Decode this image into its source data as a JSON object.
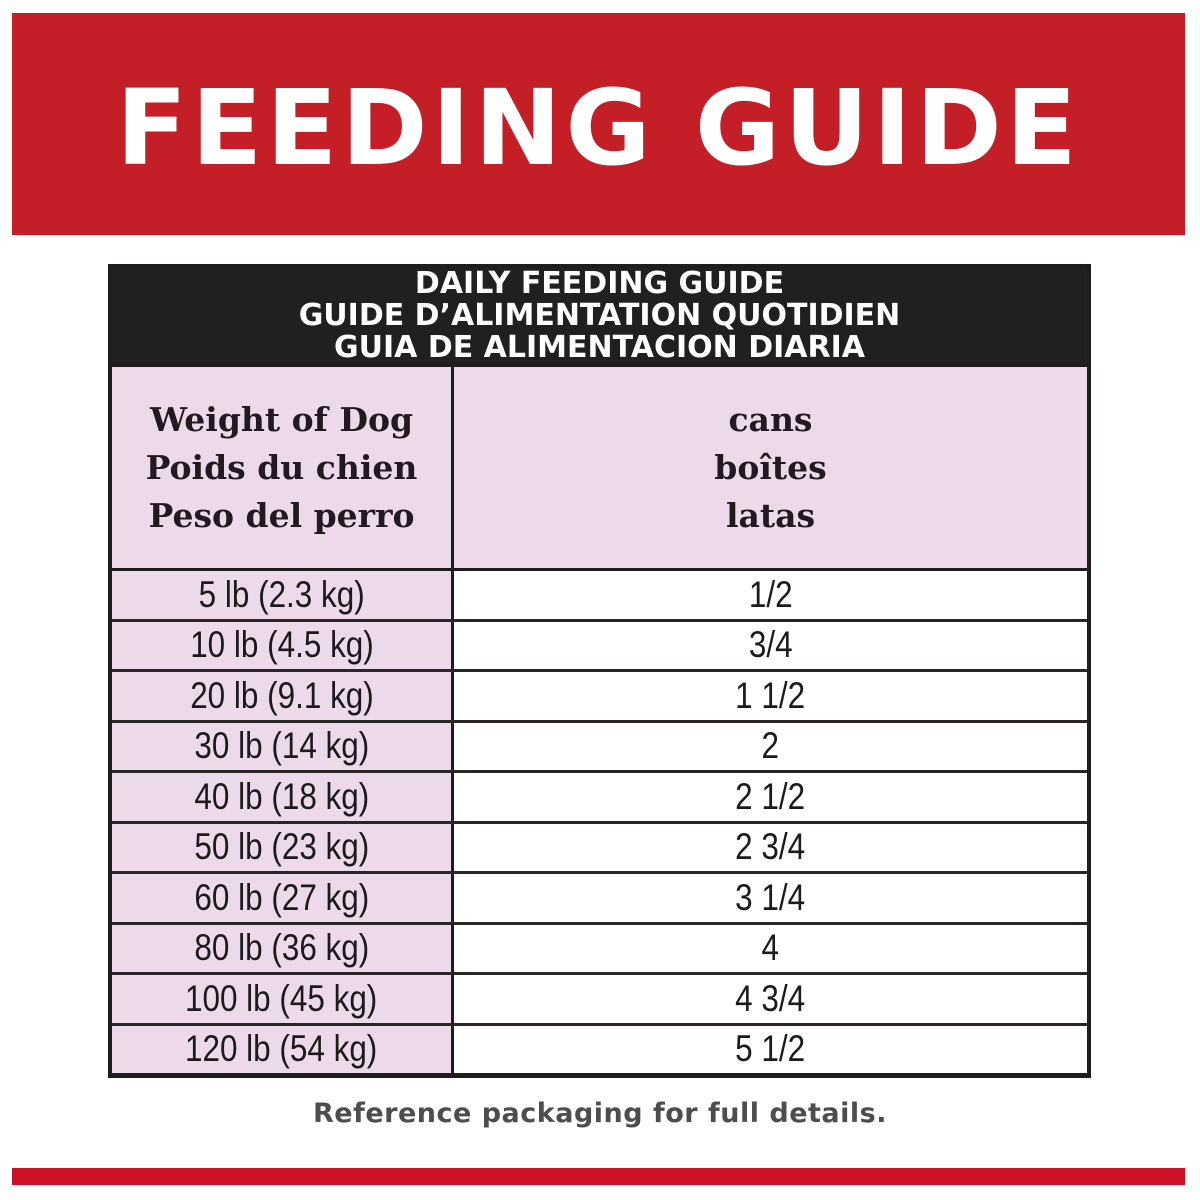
{
  "banner": {
    "title": "FEEDING GUIDE",
    "color": "#c41f26"
  },
  "table": {
    "title_lines": [
      "DAILY FEEDING GUIDE",
      "GUIDE D’ALIMENTATION QUOTIDIEN",
      "GUIA DE ALIMENTACION DIARIA"
    ],
    "columns": {
      "weight": [
        "Weight of Dog",
        "Poids du chien",
        "Peso del perro"
      ],
      "cans": [
        "cans",
        "boîtes",
        "latas"
      ]
    },
    "rows": [
      {
        "weight": "5 lb (2.3 kg)",
        "cans": "1/2"
      },
      {
        "weight": "10 lb (4.5 kg)",
        "cans": "3/4"
      },
      {
        "weight": "20 lb (9.1 kg)",
        "cans": "1 1/2"
      },
      {
        "weight": "30 lb (14 kg)",
        "cans": "2"
      },
      {
        "weight": "40 lb (18 kg)",
        "cans": "2 1/2"
      },
      {
        "weight": "50 lb (23 kg)",
        "cans": "2 3/4"
      },
      {
        "weight": "60 lb (27 kg)",
        "cans": "3 1/4"
      },
      {
        "weight": "80 lb (36 kg)",
        "cans": "4"
      },
      {
        "weight": "100 lb (45 kg)",
        "cans": "4 3/4"
      },
      {
        "weight": "120 lb (54 kg)",
        "cans": "5 1/2"
      }
    ],
    "colors": {
      "header_bg": "#221f20",
      "label_bg": "#ecdaeb",
      "value_bg": "#ffffff"
    }
  },
  "footer": {
    "note": "Reference packaging for full details.",
    "stripe_color": "#cc1129"
  }
}
